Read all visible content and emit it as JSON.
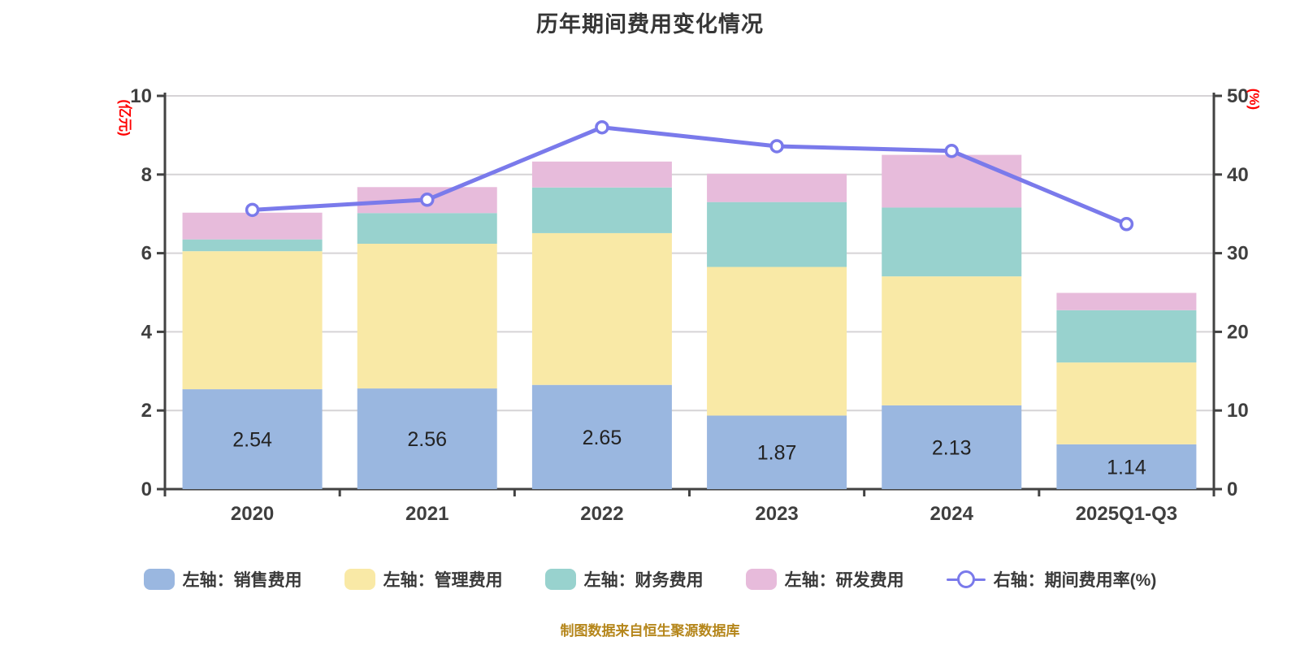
{
  "title": "历年期间费用变化情况",
  "footer": "制图数据来自恒生聚源数据库",
  "left_axis": {
    "label": "(亿元)",
    "ticks": [
      0,
      2,
      4,
      6,
      8,
      10
    ],
    "max": 10,
    "label_color": "#ff0000"
  },
  "right_axis": {
    "label": "(%)",
    "ticks": [
      0,
      10,
      20,
      30,
      40,
      50
    ],
    "max": 50,
    "label_color": "#ff0000"
  },
  "legend": {
    "items": [
      {
        "label": "左轴：销售费用",
        "color": "#9AB7E0",
        "type": "box"
      },
      {
        "label": "左轴：管理费用",
        "color": "#F9E9A6",
        "type": "box"
      },
      {
        "label": "左轴：财务费用",
        "color": "#98D2CE",
        "type": "box"
      },
      {
        "label": "左轴：研发费用",
        "color": "#E7BBDB",
        "type": "box"
      },
      {
        "label": "右轴：期间费用率(%)",
        "color": "#7A7AEB",
        "type": "line"
      }
    ]
  },
  "chart_data": {
    "type": "bar",
    "subtype": "stacked-bar-with-line",
    "categories": [
      "2020",
      "2021",
      "2022",
      "2023",
      "2024",
      "2025Q1-Q3"
    ],
    "series": [
      {
        "name": "左轴：销售费用",
        "type": "bar",
        "axis": "left",
        "color": "#9AB7E0",
        "values": [
          2.54,
          2.56,
          2.65,
          1.87,
          2.13,
          1.14
        ]
      },
      {
        "name": "左轴：管理费用",
        "type": "bar",
        "axis": "left",
        "color": "#F9E9A6",
        "values": [
          3.51,
          3.68,
          3.86,
          3.78,
          3.28,
          2.08
        ]
      },
      {
        "name": "左轴：财务费用",
        "type": "bar",
        "axis": "left",
        "color": "#98D2CE",
        "values": [
          0.3,
          0.78,
          1.16,
          1.65,
          1.75,
          1.33
        ]
      },
      {
        "name": "左轴：研发费用",
        "type": "bar",
        "axis": "left",
        "color": "#E7BBDB",
        "values": [
          0.68,
          0.66,
          0.66,
          0.72,
          1.34,
          0.44
        ]
      },
      {
        "name": "右轴：期间费用率(%)",
        "type": "line",
        "axis": "right",
        "color": "#7A7AEB",
        "values": [
          35.5,
          36.8,
          46.0,
          43.6,
          43.0,
          33.7
        ]
      }
    ],
    "bar_value_labels": [
      "2.54",
      "2.56",
      "2.65",
      "1.87",
      "2.13",
      "1.14"
    ],
    "title": "历年期间费用变化情况",
    "xlabel": "",
    "ylabel_left": "(亿元)",
    "ylabel_right": "(%)",
    "ylim_left": [
      0,
      10
    ],
    "ylim_right": [
      0,
      50
    ],
    "grid": true,
    "legend_position": "bottom"
  },
  "colors": {
    "grid_line": "#D6D3D6",
    "axis_line": "#424242",
    "tick_text": "#3f3f3f",
    "bar_label_text": "#222222",
    "line_marker_fill": "#ffffff",
    "title_text": "#363636"
  }
}
